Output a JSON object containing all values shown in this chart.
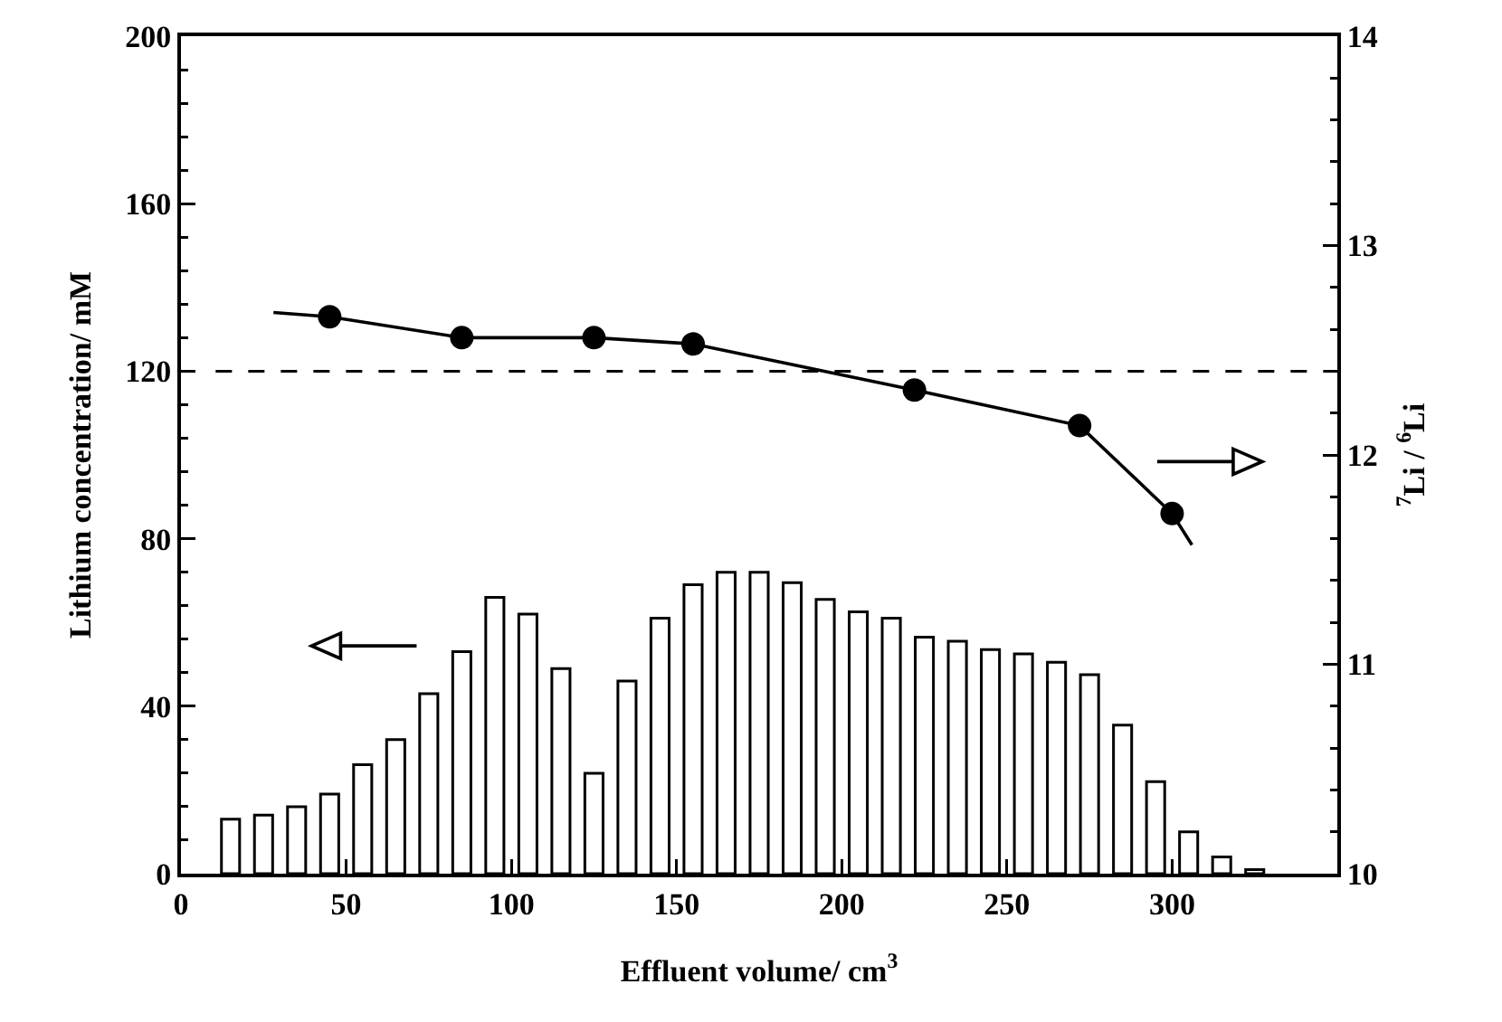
{
  "chart_data": {
    "type": "bar",
    "xlabel": "Effluent volume/ cm$^{3}$",
    "ylabel": "Lithium concentration/ mM",
    "y2label": "$^{7}$Li / $^{6}$Li",
    "x": [
      15,
      25,
      35,
      45,
      55,
      65,
      75,
      85,
      95,
      105,
      115,
      125,
      135,
      145,
      155,
      165,
      175,
      185,
      195,
      205,
      215,
      225,
      235,
      245,
      255,
      265,
      275,
      285,
      295,
      305,
      315,
      325
    ],
    "series": [
      {
        "color": "#ffffff",
        "values": [
          13,
          14,
          16,
          19,
          26,
          32,
          43,
          53,
          66,
          62,
          49,
          24,
          46,
          61,
          69,
          72,
          72,
          69.5,
          65.5,
          62.5,
          61,
          56.5,
          55.5,
          53.5,
          52.5,
          50.5,
          47.5,
          35.5,
          22,
          10,
          4,
          1
        ]
      },
      {
        "type": "line",
        "color": "#000000",
        "axis": "y2",
        "marker": "none",
        "x": [
          28,
          45,
          85,
          125,
          155,
          222,
          272,
          300,
          306
        ],
        "values": [
          12.68,
          12.66,
          12.56,
          12.56,
          12.53,
          12.31,
          12.14,
          11.72,
          11.57
        ]
      },
      {
        "type": "scatter",
        "color": "#000000",
        "axis": "y2",
        "marker": "circle",
        "x": [
          45,
          85,
          125,
          155,
          222,
          272,
          300
        ],
        "values": [
          12.66,
          12.56,
          12.56,
          12.53,
          12.31,
          12.14,
          11.72
        ]
      }
    ],
    "ref_lines": [
      {
        "axis": "y",
        "value": 120,
        "line_style": "dashed",
        "color": "#000000"
      }
    ],
    "xlim": [
      0,
      350
    ],
    "xticks": [
      0,
      50,
      100,
      150,
      200,
      250,
      300
    ],
    "ylim": [
      0,
      200
    ],
    "yticks": [
      0,
      40,
      80,
      120,
      160,
      200
    ],
    "y2lim": [
      10,
      14
    ],
    "y2ticks": [
      10,
      11,
      12,
      13,
      14
    ],
    "grid": false
  }
}
